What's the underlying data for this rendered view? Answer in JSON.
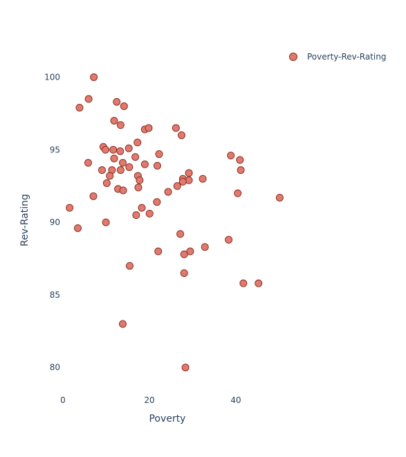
{
  "chart_data": {
    "type": "scatter",
    "xlabel": "Poverty",
    "ylabel": "Rev-Rating",
    "xlim": [
      0,
      52
    ],
    "ylim": [
      78.7,
      101.5
    ],
    "xticks": [
      0,
      20,
      40
    ],
    "yticks": [
      80,
      85,
      90,
      95,
      100
    ],
    "legend_position": "top-right",
    "grid": false,
    "marker_color": "#e07a6e",
    "marker_edge_color": "#8b2e22",
    "series": [
      {
        "name": "Poverty-Rev-Rating",
        "points": [
          [
            8.9,
            100.0
          ],
          [
            7.7,
            98.5
          ],
          [
            5.6,
            97.9
          ],
          [
            14.2,
            98.3
          ],
          [
            15.9,
            98.0
          ],
          [
            13.6,
            97.0
          ],
          [
            15.1,
            96.7
          ],
          [
            20.7,
            96.4
          ],
          [
            21.6,
            96.5
          ],
          [
            27.9,
            96.5
          ],
          [
            29.2,
            96.0
          ],
          [
            11.1,
            95.2
          ],
          [
            11.6,
            95.0
          ],
          [
            13.4,
            95.0
          ],
          [
            15.0,
            94.9
          ],
          [
            17.0,
            95.1
          ],
          [
            19.0,
            95.5
          ],
          [
            24.0,
            94.7
          ],
          [
            13.6,
            94.4
          ],
          [
            18.5,
            94.5
          ],
          [
            7.6,
            94.1
          ],
          [
            15.6,
            94.1
          ],
          [
            20.7,
            94.0
          ],
          [
            23.6,
            93.9
          ],
          [
            40.6,
            94.6
          ],
          [
            42.7,
            94.3
          ],
          [
            10.8,
            93.6
          ],
          [
            13.1,
            93.6
          ],
          [
            15.1,
            93.6
          ],
          [
            17.1,
            93.8
          ],
          [
            42.9,
            93.6
          ],
          [
            12.6,
            93.2
          ],
          [
            19.1,
            93.2
          ],
          [
            19.5,
            92.9
          ],
          [
            30.9,
            93.4
          ],
          [
            29.5,
            93.0
          ],
          [
            34.1,
            93.0
          ],
          [
            30.9,
            92.9
          ],
          [
            29.5,
            92.8
          ],
          [
            11.9,
            92.7
          ],
          [
            14.5,
            92.3
          ],
          [
            15.7,
            92.2
          ],
          [
            19.2,
            92.4
          ],
          [
            26.1,
            92.1
          ],
          [
            28.2,
            92.5
          ],
          [
            42.2,
            92.0
          ],
          [
            51.9,
            91.7
          ],
          [
            8.8,
            91.8
          ],
          [
            3.3,
            91.0
          ],
          [
            20.0,
            91.0
          ],
          [
            23.5,
            91.4
          ],
          [
            18.7,
            90.5
          ],
          [
            21.8,
            90.6
          ],
          [
            11.7,
            90.0
          ],
          [
            5.2,
            89.6
          ],
          [
            28.9,
            89.2
          ],
          [
            40.1,
            88.8
          ],
          [
            34.6,
            88.3
          ],
          [
            23.8,
            88.0
          ],
          [
            29.8,
            87.8
          ],
          [
            31.2,
            88.0
          ],
          [
            17.2,
            87.0
          ],
          [
            29.8,
            86.5
          ],
          [
            43.5,
            85.8
          ],
          [
            47.0,
            85.8
          ],
          [
            15.6,
            83.0
          ],
          [
            30.1,
            80.0
          ]
        ]
      }
    ]
  }
}
